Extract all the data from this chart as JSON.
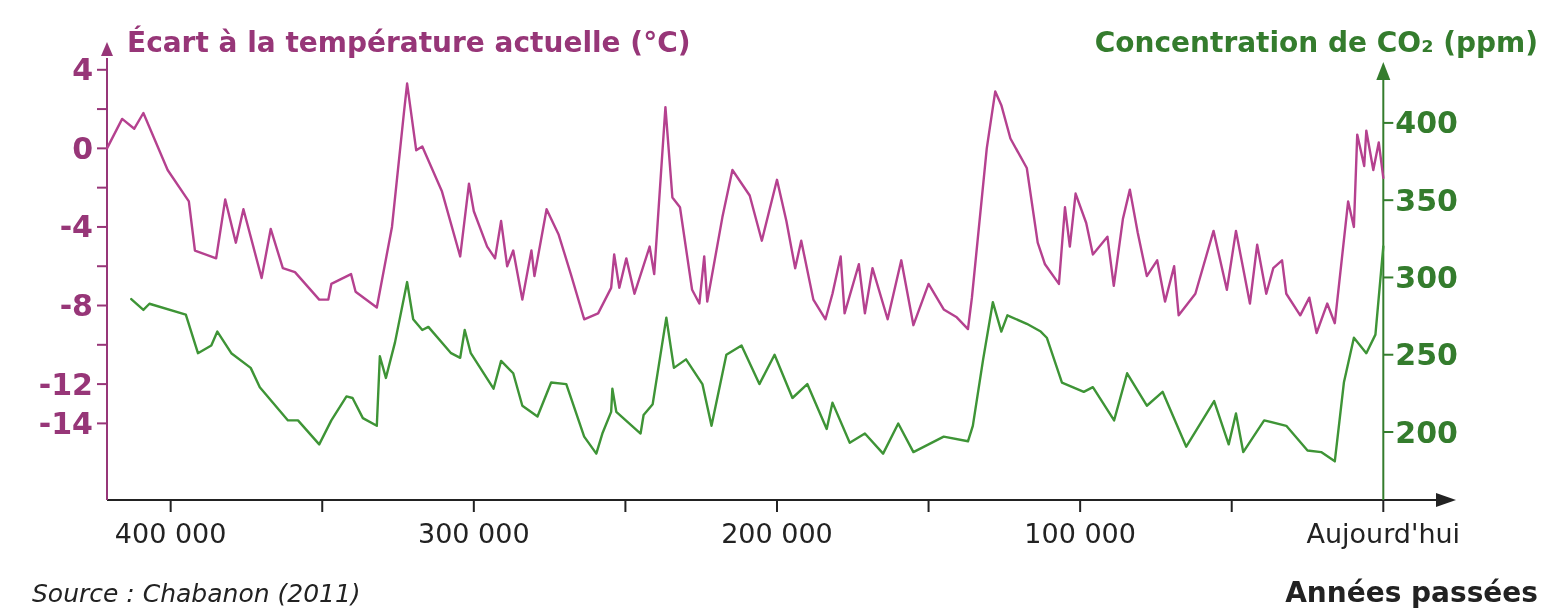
{
  "chart_data": {
    "type": "line",
    "ylabel": "Écart à la température actuelle (°C)",
    "y2label": "Concentration de CO₂ (ppm)",
    "xlabel": "Années passées",
    "annotations": [
      "Source : Chabanon (2011)"
    ],
    "xlim": [
      421000,
      -22000
    ],
    "xticks": [
      {
        "value": 400000,
        "label": "400 000"
      },
      {
        "value": 350000,
        "label": null
      },
      {
        "value": 300000,
        "label": "300 000"
      },
      {
        "value": 250000,
        "label": null
      },
      {
        "value": 200000,
        "label": "200 000"
      },
      {
        "value": 150000,
        "label": null
      },
      {
        "value": 100000,
        "label": "100 000"
      },
      {
        "value": 50000,
        "label": null
      },
      {
        "value": 0,
        "label": "Aujourd'hui"
      }
    ],
    "ylim": [
      -17.9,
      4.6
    ],
    "yticks": [
      4,
      {
        "value": 2,
        "label": null
      },
      0,
      {
        "value": -2,
        "label": null
      },
      -4,
      {
        "value": -6,
        "label": null
      },
      -8,
      {
        "value": -10,
        "label": null
      },
      -12,
      -14
    ],
    "y2lim": [
      156,
      442
    ],
    "y2ticks": [
      200,
      250,
      300,
      350,
      400
    ],
    "grid": false,
    "marker": "none",
    "line_style": "solid",
    "series": [
      {
        "color": "#b5418f",
        "x": [
          421000,
          416000,
          412000,
          409000,
          401000,
          394000,
          392000,
          385000,
          382000,
          378500,
          376000,
          370000,
          367000,
          363000,
          359000,
          351000,
          348000,
          347000,
          340500,
          339000,
          332000,
          327000,
          323000,
          322000,
          319000,
          317000,
          310500,
          304500,
          301600,
          300000,
          295600,
          293000,
          291000,
          289000,
          287000,
          284000,
          281000,
          280000,
          276000,
          272000,
          268000,
          263600,
          259000,
          254700,
          253700,
          252000,
          249700,
          247000,
          242000,
          240500,
          236800,
          234500,
          232000,
          228000,
          225600,
          224000,
          223000,
          218000,
          214700,
          209000,
          205000,
          200000,
          196900,
          194000,
          192000,
          188000,
          184000,
          181700,
          179000,
          177700,
          173000,
          171000,
          168500,
          163500,
          159000,
          155000,
          150000,
          145000,
          140700,
          137000,
          135700,
          130800,
          128000,
          126000,
          123000,
          117600,
          114000,
          111600,
          107000,
          105000,
          103400,
          101500,
          98000,
          95800,
          91000,
          88900,
          85900,
          83600,
          81000,
          78000,
          74600,
          72000,
          69000,
          67500,
          62000,
          56000,
          51600,
          48600,
          44000,
          41600,
          38600,
          36300,
          33400,
          32000,
          27400,
          24400,
          22000,
          18500,
          16000,
          11600,
          9700,
          8600,
          6300,
          5600,
          3300,
          1500,
          0
        ],
        "values": [
          0,
          1.5,
          1,
          1.8,
          -1.1,
          -2.7,
          -5.2,
          -5.6,
          -2.6,
          -4.8,
          -3.1,
          -6.6,
          -4.1,
          -6.1,
          -6.3,
          -7.7,
          -7.7,
          -6.9,
          -6.4,
          -7.3,
          -8.1,
          -4,
          1.9,
          3.3,
          -0.1,
          0.1,
          -2.2,
          -5.5,
          -1.8,
          -3.2,
          -5,
          -5.6,
          -3.7,
          -6,
          -5.2,
          -7.7,
          -5.2,
          -6.5,
          -3.1,
          -4.4,
          -6.4,
          -8.7,
          -8.4,
          -7.1,
          -5.4,
          -7.1,
          -5.6,
          -7.4,
          -5,
          -6.4,
          2.1,
          -2.5,
          -3,
          -7.2,
          -7.9,
          -5.5,
          -7.8,
          -3.5,
          -1.1,
          -2.4,
          -4.7,
          -1.6,
          -3.7,
          -6.1,
          -4.7,
          -7.7,
          -8.7,
          -7.4,
          -5.5,
          -8.4,
          -5.9,
          -8.4,
          -6.1,
          -8.7,
          -5.7,
          -9,
          -6.9,
          -8.2,
          -8.6,
          -9.2,
          -7.6,
          0,
          2.9,
          2.2,
          0.5,
          -1,
          -4.8,
          -5.9,
          -6.9,
          -3,
          -5,
          -2.3,
          -3.8,
          -5.4,
          -4.5,
          -7,
          -3.6,
          -2.1,
          -4.3,
          -6.5,
          -5.7,
          -7.8,
          -6,
          -8.5,
          -7.4,
          -4.2,
          -7.2,
          -4.2,
          -7.9,
          -4.9,
          -7.4,
          -6.1,
          -5.7,
          -7.4,
          -8.5,
          -7.6,
          -9.4,
          -7.9,
          -8.9,
          -2.7,
          -4,
          0.7,
          -0.9,
          0.9,
          -1.1,
          0.3,
          -1.5
        ]
      },
      {
        "color": "#3e9436",
        "axis": "y2",
        "x": [
          413000,
          409000,
          407000,
          395000,
          391000,
          386600,
          384600,
          380000,
          373600,
          370600,
          361300,
          358000,
          351000,
          347000,
          342000,
          340000,
          336600,
          332000,
          331000,
          329000,
          326000,
          322000,
          320000,
          317000,
          315000,
          307500,
          304500,
          303000,
          301000,
          293500,
          291000,
          287000,
          284000,
          279000,
          274500,
          269500,
          263600,
          259600,
          257600,
          254700,
          254300,
          253000,
          245000,
          244000,
          241000,
          236500,
          234000,
          230000,
          224600,
          221600,
          216700,
          211700,
          205800,
          200800,
          194900,
          190000,
          183600,
          181700,
          176000,
          171000,
          165000,
          160000,
          155000,
          145000,
          137000,
          135400,
          132000,
          128800,
          126000,
          124000,
          117600,
          113000,
          111000,
          106000,
          98800,
          95800,
          88800,
          84500,
          78000,
          72800,
          65000,
          55800,
          51000,
          48600,
          46200,
          39300,
          32000,
          25000,
          20500,
          16000,
          13000,
          9700,
          5600,
          2600,
          0
        ],
        "values": [
          286,
          279,
          283,
          276,
          251,
          256,
          265,
          251,
          241.5,
          229,
          207.5,
          207.5,
          192,
          207.5,
          223,
          222,
          209,
          204,
          249,
          235,
          258,
          297,
          273,
          266,
          268,
          251,
          248,
          266,
          251,
          228,
          246,
          238,
          217,
          210,
          232,
          231,
          197,
          186,
          199,
          213,
          228,
          213,
          199,
          211,
          218,
          274,
          241.5,
          247,
          231,
          204,
          250,
          256,
          231,
          250,
          222,
          231,
          202,
          219,
          193,
          199,
          186,
          205.5,
          187,
          197,
          194,
          204,
          247,
          284,
          265,
          275.5,
          270,
          265,
          261,
          232,
          226,
          229,
          207.5,
          238,
          217,
          226,
          190.5,
          220,
          192,
          212,
          187,
          207.5,
          204,
          188,
          187,
          181,
          232,
          261,
          251,
          263,
          320
        ]
      }
    ]
  }
}
